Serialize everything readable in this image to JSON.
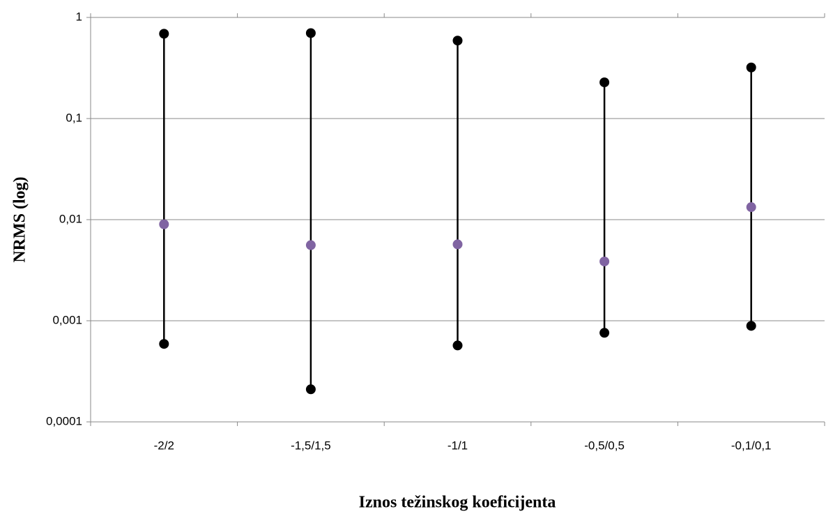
{
  "chart_data": {
    "type": "range",
    "x_label": "Iznos težinskog koeficijenta",
    "y_label": "NRMS (log)",
    "categories": [
      "-2/2",
      "-1,5/1,5",
      "-1/1",
      "-0,5/0,5",
      "-0,1/0,1"
    ],
    "series": [
      {
        "color": "#000000",
        "values": [
          0.69,
          0.7,
          0.59,
          0.228,
          0.32
        ]
      },
      {
        "color": "#000000",
        "values": [
          0.00059,
          0.00021,
          0.00057,
          0.00076,
          0.00089
        ]
      },
      {
        "color": "#8064a2",
        "values": [
          0.009,
          0.0056,
          0.0057,
          0.00386,
          0.0133
        ]
      }
    ],
    "log_scale": true,
    "ylim": [
      0.0001,
      1
    ],
    "yticks": [
      {
        "value": 0.0001,
        "label": "0,0001"
      },
      {
        "value": 0.001,
        "label": "0,001"
      },
      {
        "value": 0.01,
        "label": "0,01"
      },
      {
        "value": 0.1,
        "label": "0,1"
      },
      1
    ],
    "grid": true
  }
}
